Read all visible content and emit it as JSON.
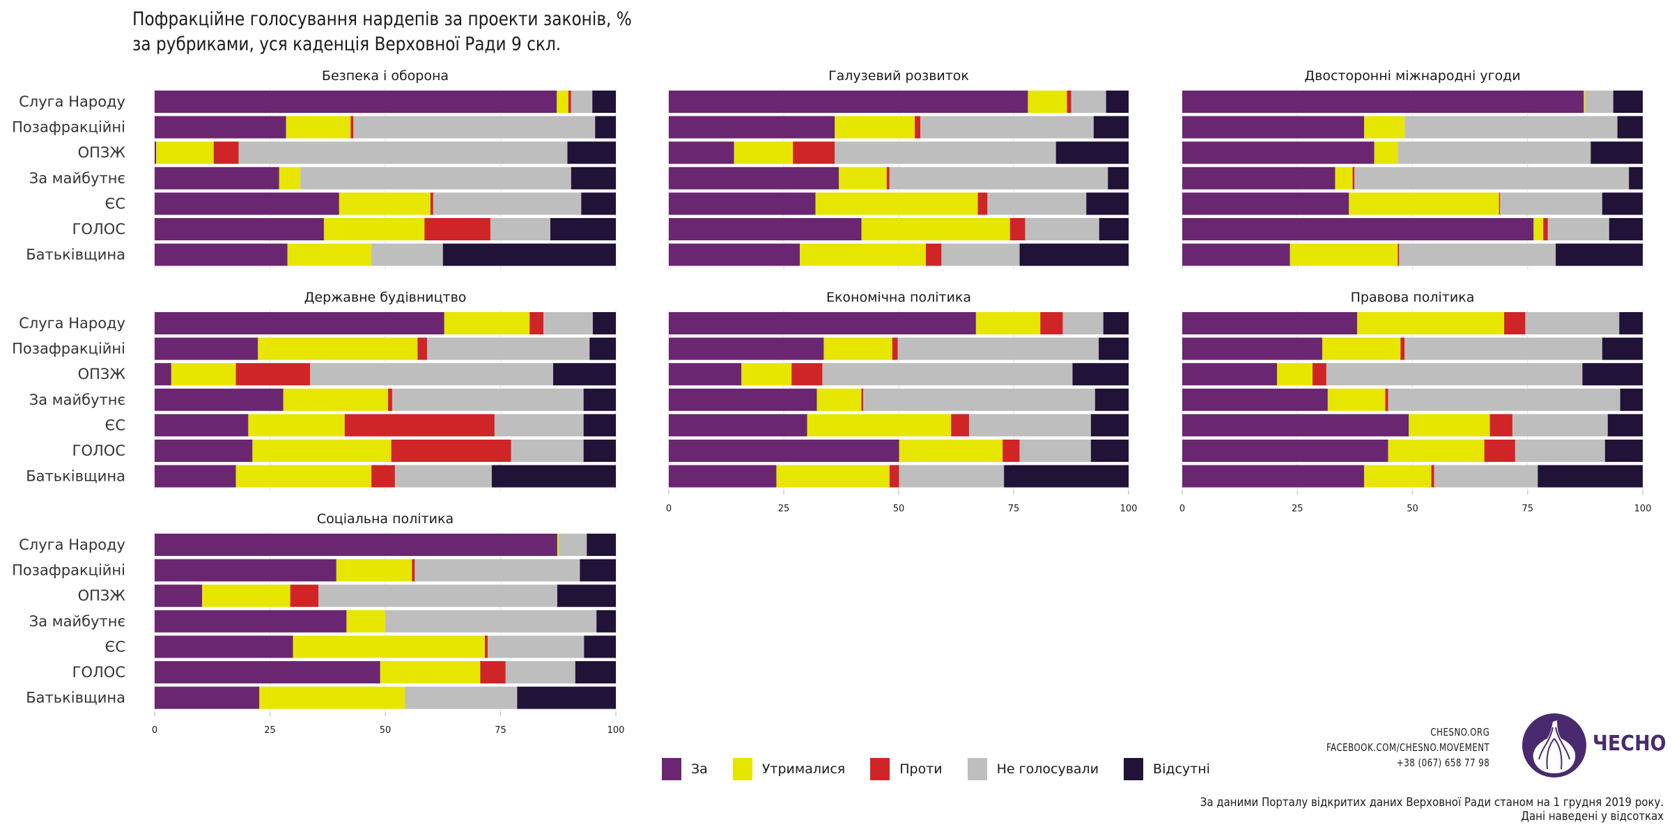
{
  "title_lines": [
    "Пофракційне голосування нардепів за проекти законів, %",
    "за рубриками, уся каденція Верховної Ради 9 скл."
  ],
  "chart_data": {
    "type": "bar",
    "orientation": "horizontal-stacked",
    "x_range": [
      0,
      100
    ],
    "x_ticks": [
      "0",
      "25",
      "50",
      "75",
      "100"
    ],
    "grid": true,
    "legend_position": "bottom",
    "categories": [
      "Слуга Народу",
      "Позафракційні",
      "ОПЗЖ",
      "За майбутнє",
      "ЄС",
      "ГОЛОС",
      "Батьківщина"
    ],
    "segments": [
      {
        "name": "За",
        "color": "#6b2671"
      },
      {
        "name": "Утрималися",
        "color": "#e6e600"
      },
      {
        "name": "Проти",
        "color": "#cf2527"
      },
      {
        "name": "Не голосували",
        "color": "#bebebe"
      },
      {
        "name": "Відсутні",
        "color": "#211238"
      }
    ],
    "panels": [
      {
        "title": "Безпека і оборона",
        "values": [
          [
            87.2,
            2.5,
            0.6,
            4.6,
            5.1
          ],
          [
            28.5,
            14.0,
            0.6,
            52.4,
            4.5
          ],
          [
            0.3,
            12.5,
            5.4,
            71.3,
            10.5
          ],
          [
            27.0,
            4.6,
            0.0,
            58.7,
            9.7
          ],
          [
            40.0,
            19.8,
            0.6,
            32.1,
            7.5
          ],
          [
            36.7,
            21.8,
            14.3,
            13.0,
            14.2
          ],
          [
            28.8,
            18.2,
            0.0,
            15.5,
            37.5
          ]
        ]
      },
      {
        "title": "Галузевий розвиток",
        "values": [
          [
            78.1,
            8.5,
            0.9,
            7.6,
            4.9
          ],
          [
            36.1,
            17.4,
            1.2,
            37.7,
            7.6
          ],
          [
            14.2,
            12.8,
            9.1,
            48.1,
            15.8
          ],
          [
            37.0,
            10.4,
            0.6,
            47.5,
            4.5
          ],
          [
            31.9,
            35.3,
            2.1,
            21.5,
            9.2
          ],
          [
            41.9,
            32.3,
            3.3,
            16.1,
            6.4
          ],
          [
            28.5,
            27.4,
            3.4,
            17.0,
            23.7
          ]
        ]
      },
      {
        "title": "Двосторонні міжнародні угоди",
        "values": [
          [
            87.2,
            0.3,
            0.0,
            6.1,
            6.4
          ],
          [
            39.5,
            8.8,
            0.0,
            46.2,
            5.5
          ],
          [
            41.7,
            5.1,
            0.0,
            41.9,
            11.3
          ],
          [
            33.2,
            3.8,
            0.4,
            59.6,
            3.0
          ],
          [
            36.2,
            32.6,
            0.2,
            22.2,
            8.8
          ],
          [
            76.3,
            2.1,
            1.0,
            13.3,
            7.3
          ],
          [
            23.4,
            23.4,
            0.3,
            34.0,
            18.9
          ]
        ]
      },
      {
        "title": "Державне будівництво",
        "values": [
          [
            62.8,
            18.5,
            3.0,
            10.7,
            5.0
          ],
          [
            22.4,
            34.6,
            2.1,
            35.2,
            5.7
          ],
          [
            3.6,
            14.0,
            16.1,
            52.7,
            13.6
          ],
          [
            27.9,
            22.7,
            0.9,
            41.5,
            7.0
          ],
          [
            20.3,
            20.9,
            32.5,
            19.3,
            7.0
          ],
          [
            21.2,
            30.1,
            26.0,
            15.7,
            7.0
          ],
          [
            17.6,
            29.4,
            5.1,
            21.0,
            26.9
          ]
        ]
      },
      {
        "title": "Економічна політика",
        "values": [
          [
            66.8,
            14.0,
            4.9,
            8.8,
            5.5
          ],
          [
            33.7,
            14.9,
            1.2,
            43.7,
            6.5
          ],
          [
            15.8,
            10.9,
            6.7,
            54.4,
            12.2
          ],
          [
            32.2,
            9.7,
            0.4,
            50.4,
            7.3
          ],
          [
            30.1,
            31.3,
            3.9,
            26.5,
            8.2
          ],
          [
            50.1,
            22.5,
            3.7,
            15.5,
            8.2
          ],
          [
            23.4,
            24.6,
            2.1,
            22.8,
            27.1
          ]
        ]
      },
      {
        "title": "Правова політика",
        "values": [
          [
            38.0,
            31.9,
            4.6,
            20.4,
            5.1
          ],
          [
            30.4,
            17.0,
            0.9,
            42.9,
            8.8
          ],
          [
            20.6,
            7.7,
            3.0,
            55.6,
            13.1
          ],
          [
            31.6,
            12.5,
            0.6,
            50.4,
            4.9
          ],
          [
            49.2,
            17.6,
            4.9,
            20.7,
            7.6
          ],
          [
            44.7,
            20.9,
            6.7,
            19.5,
            8.2
          ],
          [
            39.5,
            14.6,
            0.6,
            22.5,
            22.8
          ]
        ]
      },
      {
        "title": "Соціальна політика",
        "values": [
          [
            87.3,
            0.3,
            0.0,
            6.1,
            6.3
          ],
          [
            39.4,
            16.4,
            0.6,
            35.8,
            7.8
          ],
          [
            10.3,
            19.1,
            6.1,
            51.8,
            12.7
          ],
          [
            41.6,
            8.4,
            0.0,
            45.8,
            4.2
          ],
          [
            30.0,
            41.6,
            0.6,
            20.9,
            6.9
          ],
          [
            48.9,
            21.7,
            5.5,
            15.1,
            8.8
          ],
          [
            22.7,
            31.6,
            0.0,
            24.3,
            21.4
          ]
        ]
      }
    ]
  },
  "legend": [
    {
      "label": "За",
      "color": "#6b2671"
    },
    {
      "label": "Утрималися",
      "color": "#e6e600"
    },
    {
      "label": "Проти",
      "color": "#cf2527"
    },
    {
      "label": "Не голосували",
      "color": "#bebebe"
    },
    {
      "label": "Відсутні",
      "color": "#211238"
    }
  ],
  "contacts": {
    "site": "CHESNO.ORG",
    "facebook": "FACEBOOK.COM/CHESNO.MOVEMENT",
    "phone": "+38 (067) 658 77 98"
  },
  "brand": {
    "name": "ЧЕСНО",
    "logo_icon": "garlic-icon",
    "color": "#4a2a6e"
  },
  "source_lines": [
    "За даними Порталу відкритих даних Верховної Ради станом на 1 грудня 2019 року.",
    "Дані наведені у відсотках"
  ]
}
